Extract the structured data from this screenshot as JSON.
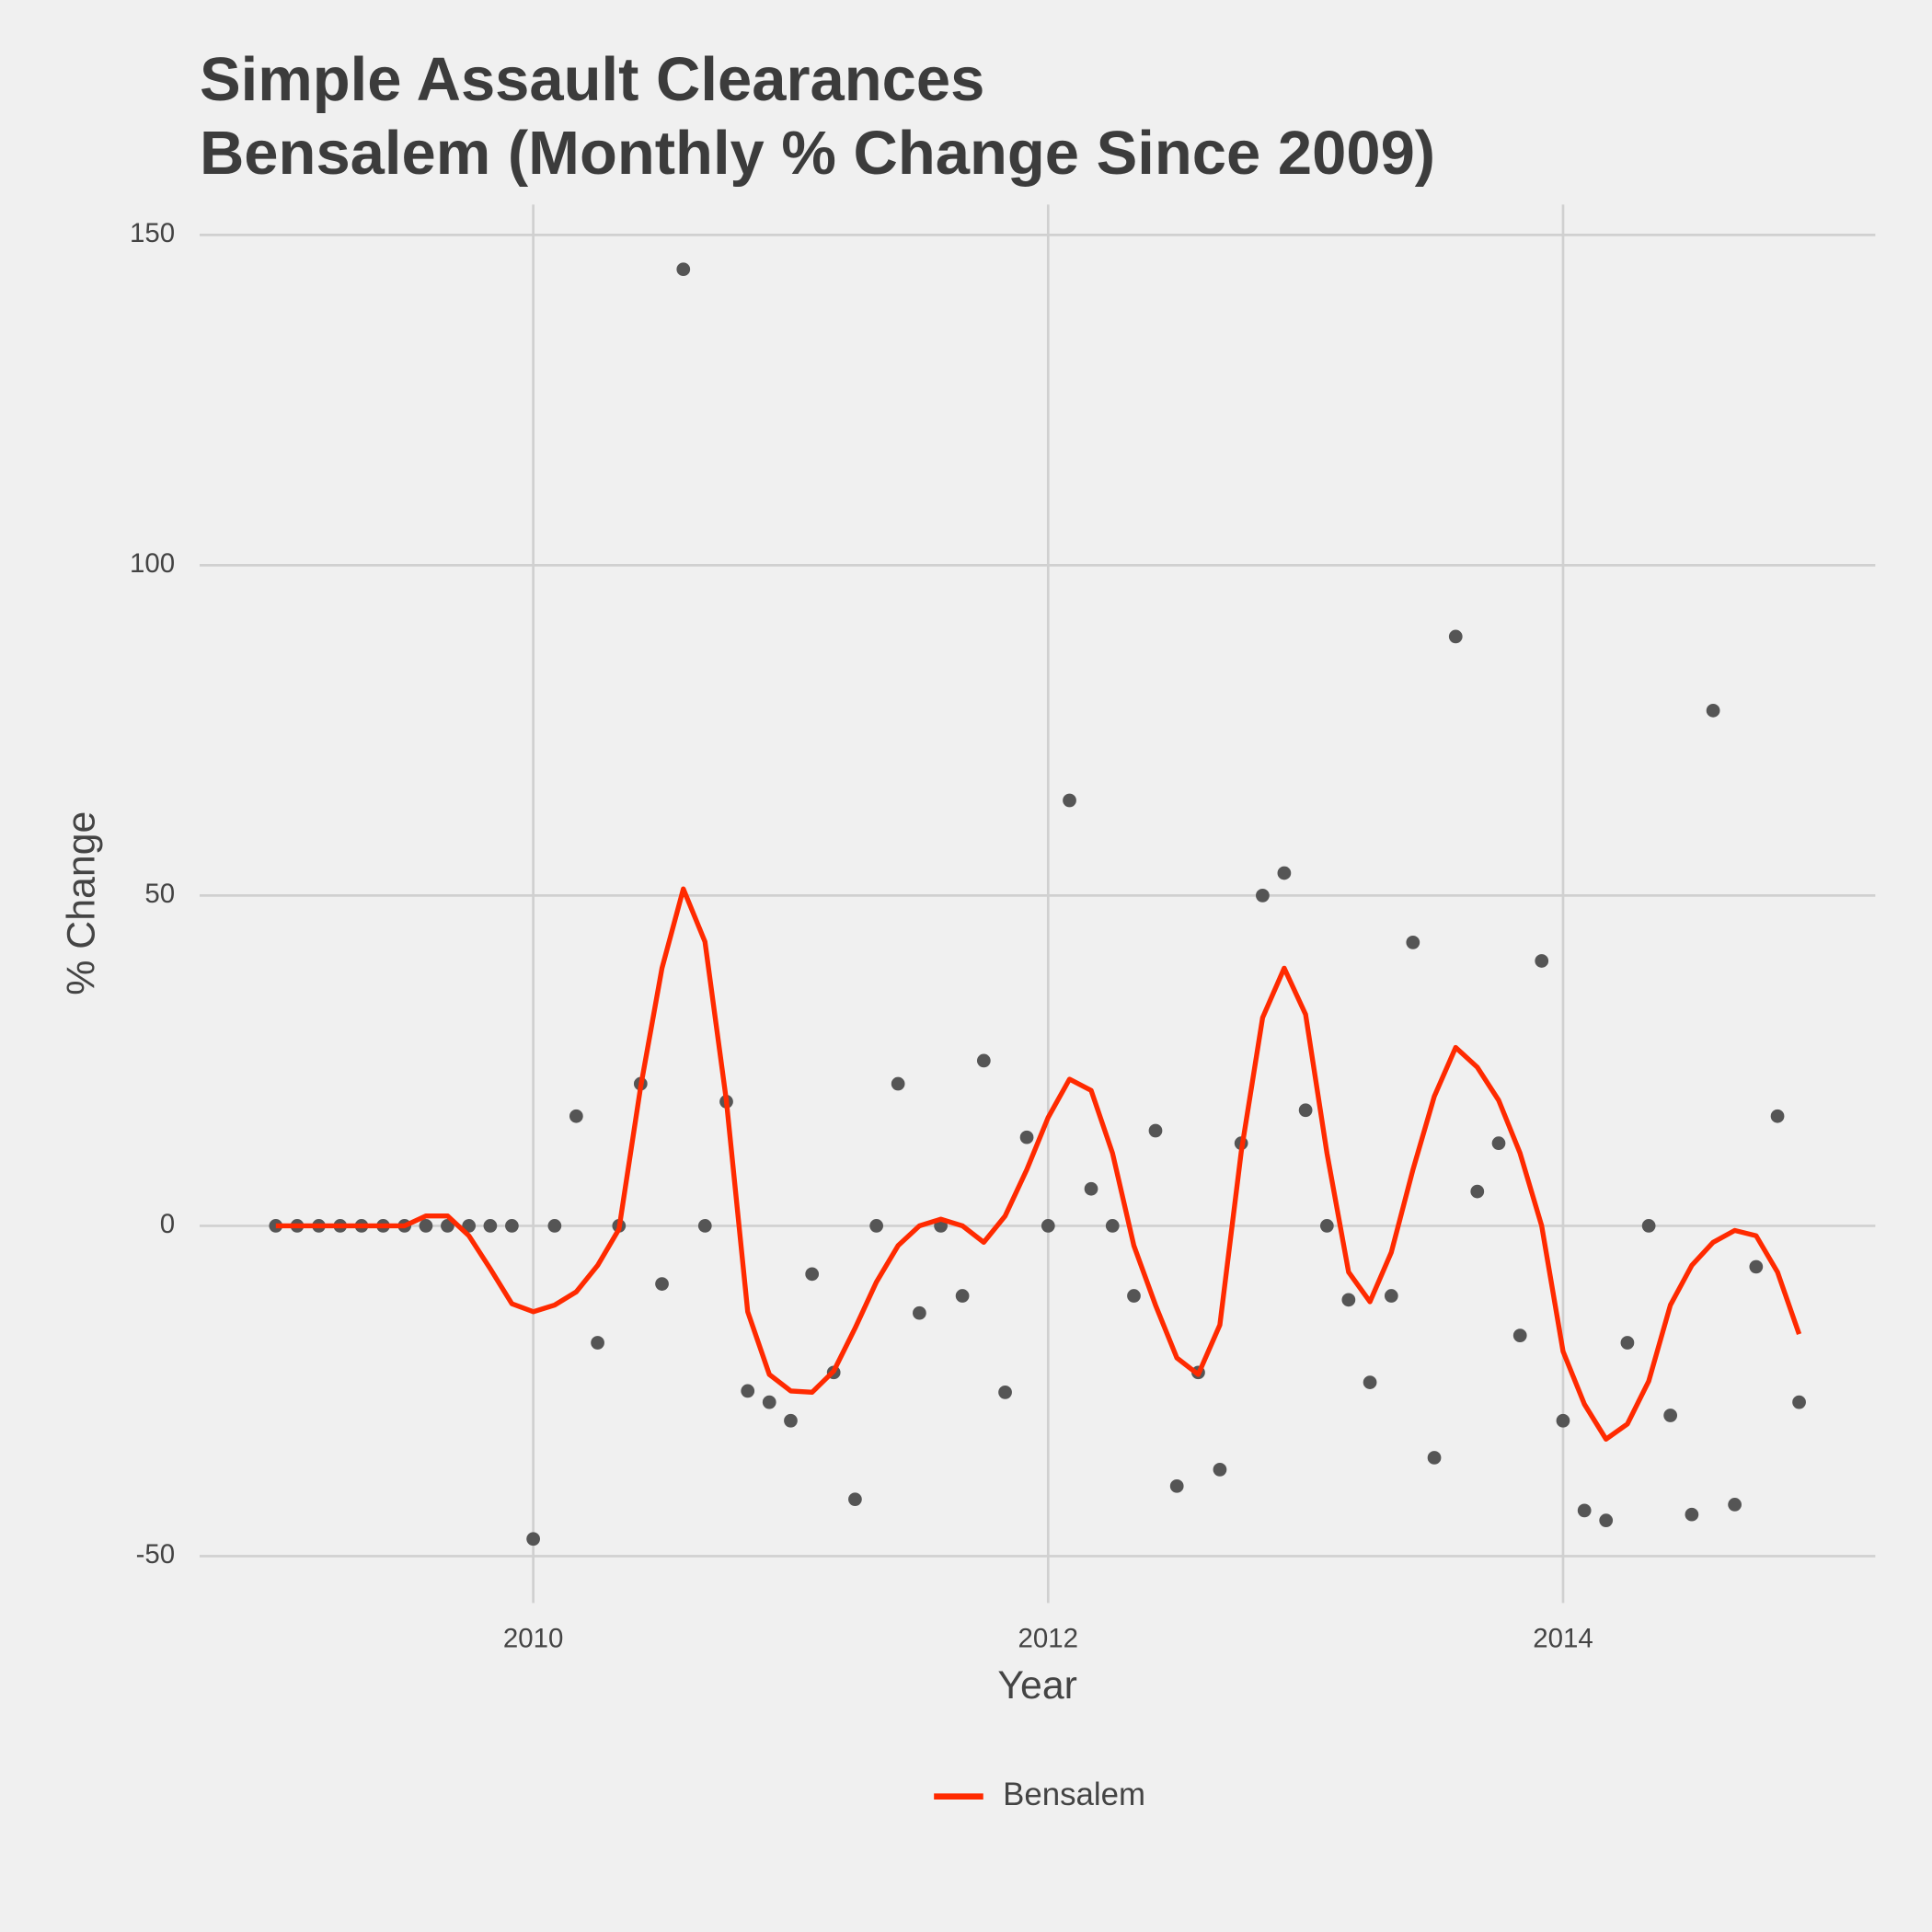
{
  "chart_data": {
    "type": "line",
    "title": "Simple Assault Clearances",
    "subtitle": "Bensalem (Monthly % Change Since 2009)",
    "x_label": "Year",
    "y_label": "% Change",
    "x": [
      2009,
      2009.083,
      2009.167,
      2009.25,
      2009.333,
      2009.417,
      2009.5,
      2009.583,
      2009.667,
      2009.75,
      2009.833,
      2009.917,
      2010,
      2010.083,
      2010.167,
      2010.25,
      2010.333,
      2010.417,
      2010.5,
      2010.583,
      2010.667,
      2010.75,
      2010.833,
      2010.917,
      2011,
      2011.083,
      2011.167,
      2011.25,
      2011.333,
      2011.417,
      2011.5,
      2011.583,
      2011.667,
      2011.75,
      2011.833,
      2011.917,
      2012,
      2012.083,
      2012.167,
      2012.25,
      2012.333,
      2012.417,
      2012.5,
      2012.583,
      2012.667,
      2012.75,
      2012.833,
      2012.917,
      2013,
      2013.083,
      2013.167,
      2013.25,
      2013.333,
      2013.417,
      2013.5,
      2013.583,
      2013.667,
      2013.75,
      2013.833,
      2013.917,
      2014,
      2014.083,
      2014.167,
      2014.25,
      2014.333,
      2014.417,
      2014.5,
      2014.583,
      2014.667,
      2014.75,
      2014.833,
      2014.917
    ],
    "points": {
      "color": "#555555",
      "values": [
        0,
        0,
        0,
        0,
        0,
        0,
        0,
        0,
        0,
        0,
        0,
        0,
        -47.4,
        0,
        16.6,
        -17.7,
        0,
        21.5,
        -8.8,
        144.8,
        0,
        18.8,
        -25,
        -26.7,
        -29.5,
        -7.3,
        -22.2,
        -41.4,
        0,
        21.5,
        -13.2,
        0,
        -10.6,
        25,
        -25.2,
        13.4,
        0,
        64.4,
        5.6,
        0,
        -10.6,
        14.4,
        -39.4,
        -22.2,
        -36.9,
        12.5,
        50,
        53.4,
        17.5,
        0,
        -11.2,
        -23.7,
        -10.6,
        42.9,
        -35.1,
        89.2,
        5.2,
        12.5,
        -16.6,
        40.1,
        -29.5,
        -43.1,
        -44.6,
        -17.7,
        0,
        -28.7,
        -43.7,
        78,
        -42.2,
        -6.2,
        16.6,
        -26.7
      ]
    },
    "series": [
      {
        "name": "Bensalem",
        "color": "#ff2a00",
        "values": [
          0,
          0,
          0,
          0,
          0,
          0,
          0,
          1.5,
          1.5,
          -1.5,
          -6.5,
          -11.8,
          -13,
          -12,
          -10,
          -6,
          -0.5,
          21,
          39,
          51,
          43,
          19,
          -13,
          -22.5,
          -25,
          -25.2,
          -22,
          -15.5,
          -8.5,
          -3,
          0,
          1,
          0,
          -2.5,
          1.5,
          8.5,
          16.4,
          22.2,
          20.5,
          11,
          -3,
          -12,
          -20,
          -22.5,
          -15,
          11.2,
          31.5,
          39,
          32,
          11,
          -7,
          -11.5,
          -4,
          8.5,
          19.6,
          27,
          24,
          19,
          11,
          0,
          -19,
          -27,
          -32.3,
          -30,
          -23.5,
          -12,
          -6,
          -2.5,
          -0.7,
          -1.5,
          -7,
          -16.4
        ]
      }
    ],
    "xlim": [
      2008.704,
      2015.213
    ],
    "xticks": [
      2010,
      2012,
      2014
    ],
    "ylim": [
      -57.1,
      154.6
    ],
    "yticks": [
      -50,
      0,
      50,
      100,
      150
    ],
    "grid": true,
    "legend": "bottom"
  }
}
